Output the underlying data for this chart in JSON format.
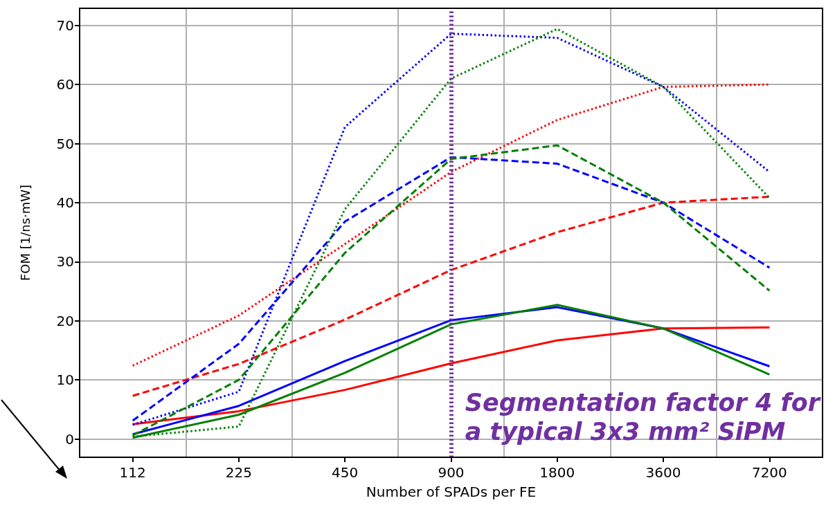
{
  "chart_data": {
    "type": "line",
    "xlabel": "Number of SPADs per FE",
    "ylabel": "FOM [1/ns·mW]",
    "categories": [
      "112",
      "225",
      "450",
      "900",
      "1800",
      "3600",
      "7200"
    ],
    "ylim": [
      -3.1,
      72.9
    ],
    "yticks": [
      0,
      10,
      20,
      30,
      40,
      50,
      60,
      70
    ],
    "grid": true,
    "marker": "none",
    "series": [
      {
        "color": "#ff0000",
        "line_style": "solid",
        "values": [
          2.5,
          4.7,
          8.3,
          12.8,
          16.7,
          18.7,
          18.9
        ]
      },
      {
        "color": "#ff0000",
        "line_style": "dashed",
        "values": [
          7.3,
          12.7,
          20.2,
          28.6,
          35.0,
          40.0,
          41.0
        ]
      },
      {
        "color": "#ff0000",
        "line_style": "dotted",
        "values": [
          12.4,
          20.9,
          33.0,
          45.2,
          54.0,
          59.6,
          60.0
        ]
      },
      {
        "color": "#0000ff",
        "line_style": "solid",
        "values": [
          0.8,
          5.6,
          13.2,
          20.1,
          22.3,
          18.7,
          12.3
        ]
      },
      {
        "color": "#0000ff",
        "line_style": "dashed",
        "values": [
          3.1,
          16.1,
          36.8,
          47.7,
          46.6,
          40.0,
          29.0
        ]
      },
      {
        "color": "#0000ff",
        "line_style": "dotted",
        "values": [
          2.4,
          8.0,
          52.8,
          68.6,
          67.9,
          59.6,
          45.2
        ]
      },
      {
        "color": "#008000",
        "line_style": "solid",
        "values": [
          0.2,
          4.1,
          11.2,
          19.4,
          22.7,
          18.7,
          10.9
        ]
      },
      {
        "color": "#008000",
        "line_style": "dashed",
        "values": [
          0.6,
          10.0,
          31.5,
          47.4,
          49.7,
          40.0,
          25.1
        ]
      },
      {
        "color": "#008000",
        "line_style": "dotted",
        "values": [
          0.4,
          2.1,
          38.9,
          61.0,
          69.4,
          59.6,
          40.8
        ]
      }
    ],
    "ref_lines": [
      {
        "axis": "x",
        "value": "900",
        "color": "#7030a0",
        "line_style": "dotted"
      }
    ],
    "annotations": [
      "Segmentation factor 4 for\na typical 3x3 mm² SiPM"
    ]
  }
}
